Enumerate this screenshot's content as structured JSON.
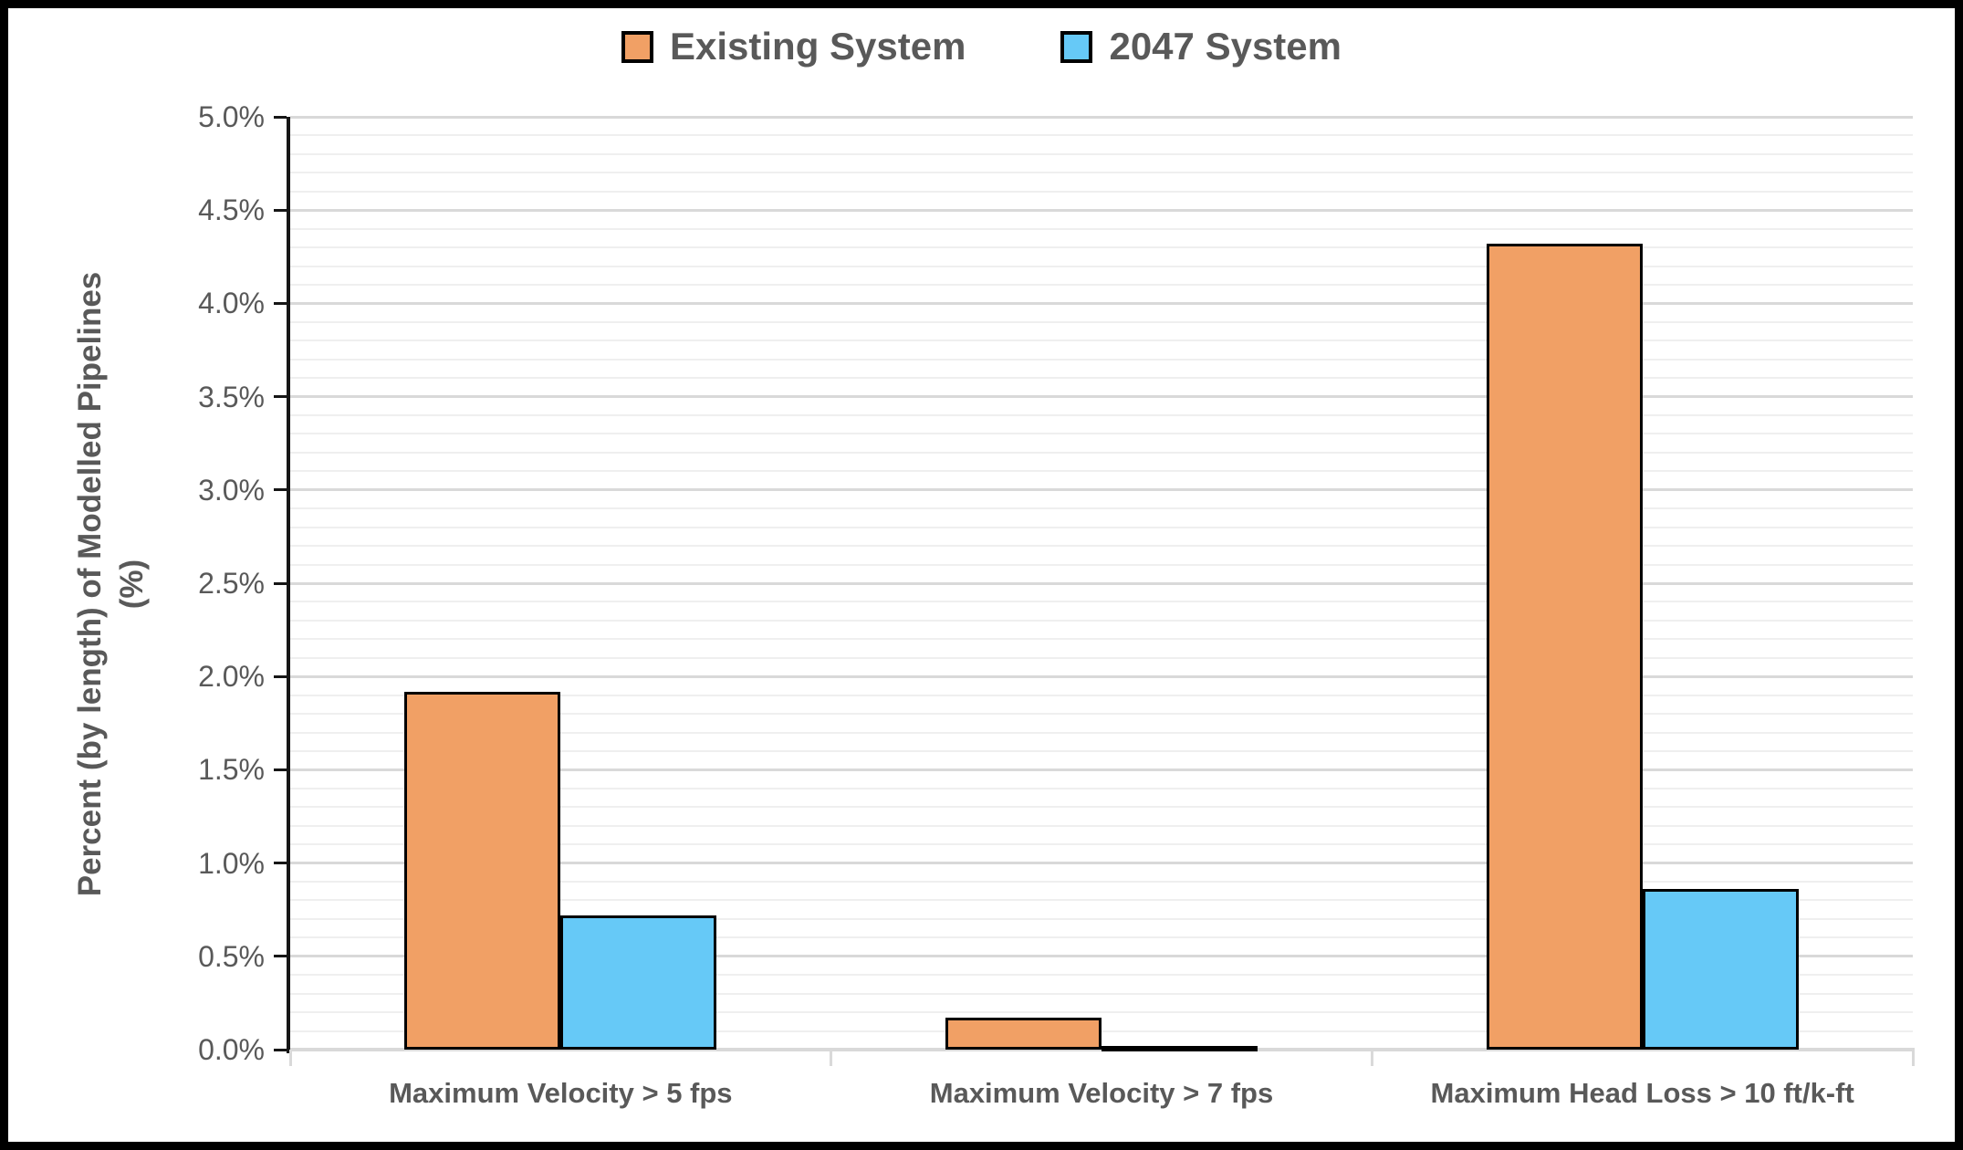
{
  "chart": {
    "legend": [
      {
        "label": "Existing System",
        "color": "#F1A065"
      },
      {
        "label": "2047 System",
        "color": "#66C9F7"
      }
    ],
    "y_axis": {
      "title_line1": "Percent (by length) of Modelled Pipelines",
      "title_line2": "(%)",
      "ticks": [
        "5.0%",
        "4.5%",
        "4.0%",
        "3.5%",
        "3.0%",
        "2.5%",
        "2.0%",
        "1.5%",
        "1.0%",
        "0.5%",
        "0.0%"
      ]
    }
  },
  "chart_data": {
    "type": "bar",
    "title": "",
    "categories": [
      "Maximum Velocity > 5 fps",
      "Maximum Velocity > 7 fps",
      "Maximum Head Loss > 10 ft/k-ft"
    ],
    "series": [
      {
        "name": "Existing System",
        "color": "#F1A065",
        "values": [
          1.92,
          0.17,
          4.32
        ]
      },
      {
        "name": "2047 System",
        "color": "#66C9F7",
        "values": [
          0.72,
          0.02,
          0.86
        ]
      }
    ],
    "xlabel": "",
    "ylabel": "Percent (by length) of Modelled Pipelines (%)",
    "ylim": [
      0,
      5
    ],
    "ytick_step": 0.5,
    "minor_tick_step": 0.1,
    "ytick_format": "0.0%",
    "grid": true,
    "legend_position": "top",
    "bar_border_color": "#000000",
    "colors": {
      "text": "#595959",
      "minor_gridline": "#EFEFEF",
      "major_gridline": "#D9D9D9",
      "baseline": "#D9D9D9",
      "axis_line": "#161616"
    }
  }
}
